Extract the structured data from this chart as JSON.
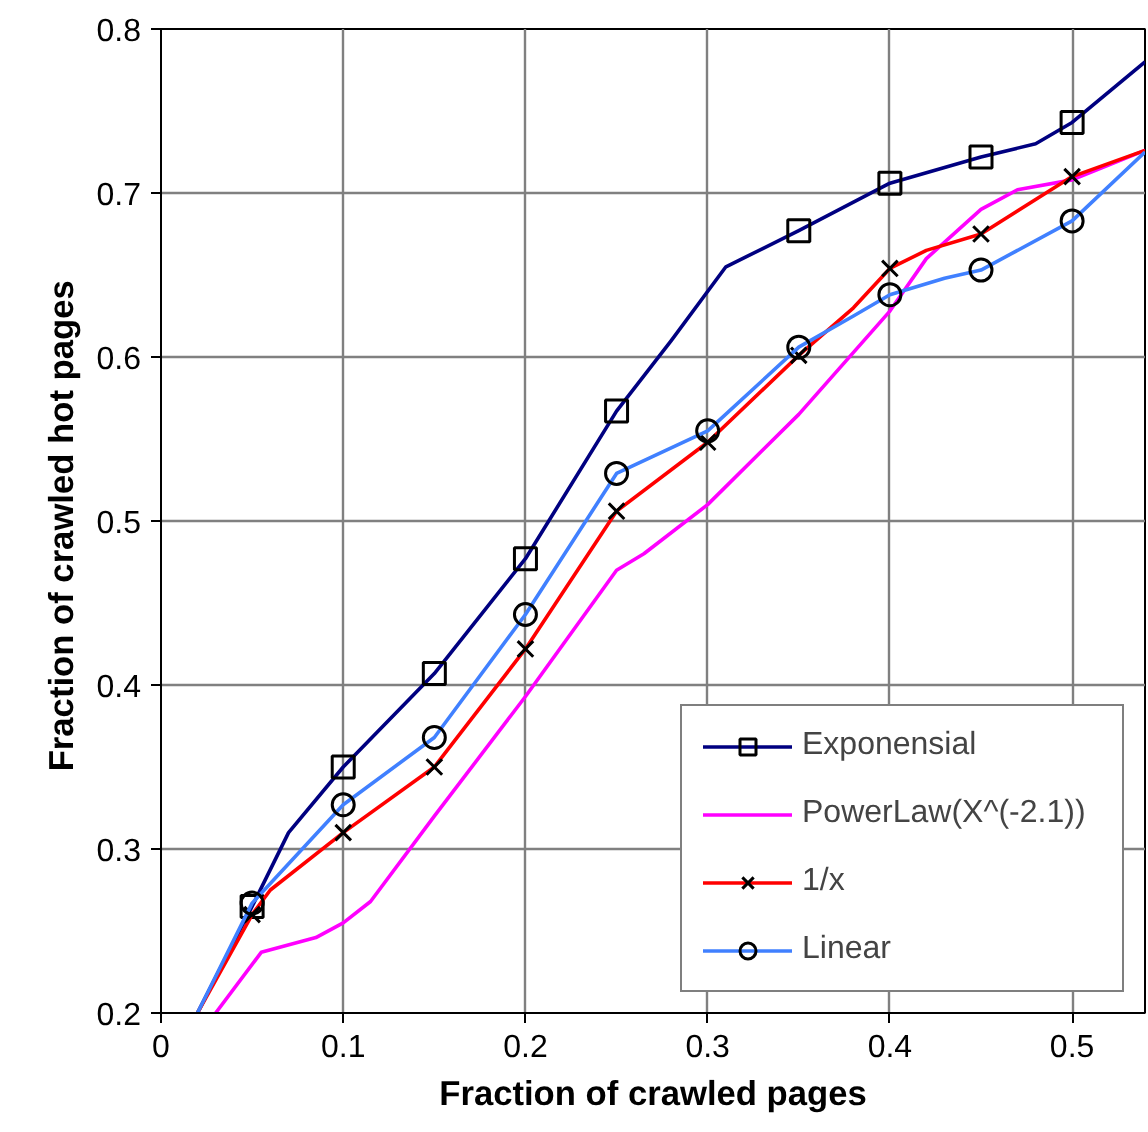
{
  "chart_data": {
    "type": "line",
    "xlabel": "Fraction of crawled pages",
    "ylabel": "Fraction of crawled  hot pages",
    "xlim": [
      0,
      0.54
    ],
    "ylim": [
      0.2,
      0.8
    ],
    "xticks": [
      0,
      0.1,
      0.2,
      0.3,
      0.4,
      0.5
    ],
    "yticks": [
      0.2,
      0.3,
      0.4,
      0.5,
      0.6,
      0.7,
      0.8
    ],
    "grid": true,
    "legend": "bottom right",
    "line_style": "solid",
    "series": [
      {
        "name": "Exponensial",
        "color": "#000080",
        "marker": "square",
        "x": [
          0.02,
          0.05,
          0.07,
          0.1,
          0.15,
          0.2,
          0.25,
          0.28,
          0.31,
          0.35,
          0.4,
          0.45,
          0.48,
          0.5,
          0.54
        ],
        "values": [
          0.2,
          0.265,
          0.31,
          0.35,
          0.407,
          0.477,
          0.567,
          0.61,
          0.655,
          0.677,
          0.706,
          0.722,
          0.73,
          0.743,
          0.78
        ]
      },
      {
        "name": "PowerLaw(X^(-2.1))",
        "color": "#ff00ff",
        "marker": "none",
        "x": [
          0.03,
          0.055,
          0.085,
          0.1,
          0.115,
          0.15,
          0.2,
          0.25,
          0.265,
          0.3,
          0.35,
          0.4,
          0.42,
          0.45,
          0.47,
          0.5,
          0.54
        ],
        "values": [
          0.2,
          0.237,
          0.246,
          0.255,
          0.268,
          0.32,
          0.393,
          0.47,
          0.48,
          0.51,
          0.565,
          0.628,
          0.66,
          0.69,
          0.702,
          0.708,
          0.726
        ]
      },
      {
        "name": "1/x",
        "color": "#ff0000",
        "marker": "cross",
        "x": [
          0.02,
          0.05,
          0.06,
          0.1,
          0.15,
          0.2,
          0.25,
          0.3,
          0.35,
          0.38,
          0.4,
          0.42,
          0.45,
          0.5,
          0.54
        ],
        "values": [
          0.2,
          0.26,
          0.275,
          0.31,
          0.35,
          0.422,
          0.506,
          0.548,
          0.601,
          0.63,
          0.654,
          0.665,
          0.675,
          0.71,
          0.726
        ]
      },
      {
        "name": "Linear",
        "color": "#4080ff",
        "marker": "circle",
        "x": [
          0.02,
          0.05,
          0.1,
          0.15,
          0.2,
          0.25,
          0.3,
          0.35,
          0.38,
          0.4,
          0.43,
          0.45,
          0.5,
          0.54
        ],
        "values": [
          0.2,
          0.267,
          0.327,
          0.368,
          0.443,
          0.529,
          0.555,
          0.606,
          0.625,
          0.638,
          0.648,
          0.653,
          0.683,
          0.725
        ]
      }
    ]
  }
}
